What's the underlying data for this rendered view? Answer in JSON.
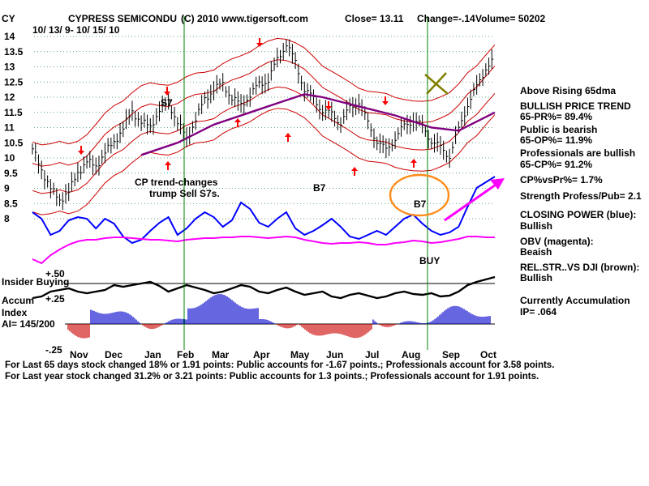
{
  "header": {
    "symbol": "CY",
    "title": "CYPRESS SEMICONDU",
    "copyright": "(C) 2010 www.tigersoft.com",
    "close": "Close=  13.11",
    "change": "Change=-.14",
    "volume": "Volume= 50202",
    "date_range": "10/ 13/ 9-  10/ 15/ 10"
  },
  "annotations": {
    "s7": "S7",
    "b7_mid": "B7",
    "b7_right": "B7",
    "cp_note_1": "CP trend-changes",
    "cp_note_2": "trump Sell S7s.",
    "buy": "BUY"
  },
  "lower_labels": {
    "plus50": "+.50",
    "insider": "Insider Buying",
    "plus25": "+.25",
    "accum": "Accum",
    "index": "Index",
    "ai": "AI= 145/200",
    "minus25": "-.25"
  },
  "sidebar": {
    "lines": [
      "Above Rising 65dma",
      "BULLISH PRICE TREND",
      "   65-PR%= 89.4%",
      "Public is bearish",
      "   65-OP%= 11.9%",
      "Professionals are bullish",
      "   65-CP%= 91.2%",
      "CP%vsPr%=  1.7%",
      "Strength Profess/Pub= 2.1",
      "CLOSING POWER (blue):",
      "Bullish",
      "OBV (magenta):",
      "Beaish",
      "REL.STR..VS DJI (brown):",
      "Bullish",
      "Currently Accumulation",
      "  IP=  .064"
    ]
  },
  "footer": {
    "line1": "For Last 65 days stock changed  18% or  1.91 points:  Public accounts for -1.67 points.;  Professionals account for  3.58 points.",
    "line2": "For Last year stock changed  31.2% or  3.21 points:  Public accounts for  1.3 points.;  Professionals account for  1.91 points."
  },
  "colors": {
    "price_bars": "#000000",
    "bands": "#cc0000",
    "ma65": "#800080",
    "closing_power": "#0000ff",
    "obv": "#ff00ff",
    "accum_pos": "#0000cc",
    "accum_neg": "#cc0000",
    "vertical_lines": "#008000",
    "circle": "#ff8c1a",
    "buy_text": "#ff0000",
    "cp_note": "#0000ff",
    "arrow": "#ff00ff",
    "x_mark": "#808000"
  },
  "chart_data": {
    "type": "line",
    "title": "CYPRESS SEMICONDU",
    "y_ticks": [
      "14",
      "13.5",
      "13",
      "12.5",
      "12",
      "11.5",
      "11",
      "10.5",
      "10",
      "9.5",
      "9",
      "8.5",
      "8"
    ],
    "y_tick_values": [
      14,
      13.5,
      13,
      12.5,
      12,
      11.5,
      11,
      10.5,
      10,
      9.5,
      9,
      8.5,
      8
    ],
    "ylim": [
      8,
      14.5
    ],
    "months": [
      "Nov",
      "Dec",
      "Jan",
      "Feb",
      "Mar",
      "Apr",
      "May",
      "Jun",
      "Jul",
      "Aug",
      "Sep",
      "Oct"
    ],
    "grid": true,
    "series": [
      {
        "name": "Price",
        "x": [
          0,
          5,
          10,
          15,
          20,
          25,
          30,
          35,
          40,
          45,
          50,
          55,
          60,
          65,
          70,
          75,
          80,
          85,
          90,
          95,
          100,
          105,
          110,
          115,
          120,
          125,
          130,
          135,
          140,
          145,
          150,
          155,
          160,
          165,
          170,
          175,
          180,
          185,
          190,
          195,
          200,
          205,
          210,
          215,
          220,
          225,
          230,
          235,
          240,
          245,
          250,
          255
        ],
        "values": [
          10.3,
          9.6,
          9.0,
          8.6,
          8.9,
          9.5,
          9.9,
          9.7,
          10.2,
          10.5,
          11.0,
          11.5,
          11.2,
          11.0,
          11.6,
          11.8,
          11.2,
          10.6,
          11.3,
          11.9,
          12.3,
          12.4,
          12.0,
          11.7,
          12.1,
          12.4,
          12.6,
          13.2,
          13.8,
          13.1,
          12.3,
          11.9,
          11.6,
          11.4,
          11.2,
          11.6,
          11.9,
          11.1,
          10.6,
          10.2,
          10.7,
          11.0,
          11.3,
          11.0,
          10.6,
          10.3,
          10.1,
          10.9,
          11.8,
          12.3,
          13.0,
          13.2
        ]
      },
      {
        "name": "65-dma",
        "x": [
          60,
          80,
          100,
          120,
          140,
          150,
          160,
          180,
          200,
          220,
          235,
          255
        ],
        "values": [
          10.1,
          10.5,
          11.1,
          11.5,
          11.9,
          12.1,
          12.0,
          11.7,
          11.4,
          11.0,
          10.9,
          11.5
        ]
      }
    ]
  }
}
